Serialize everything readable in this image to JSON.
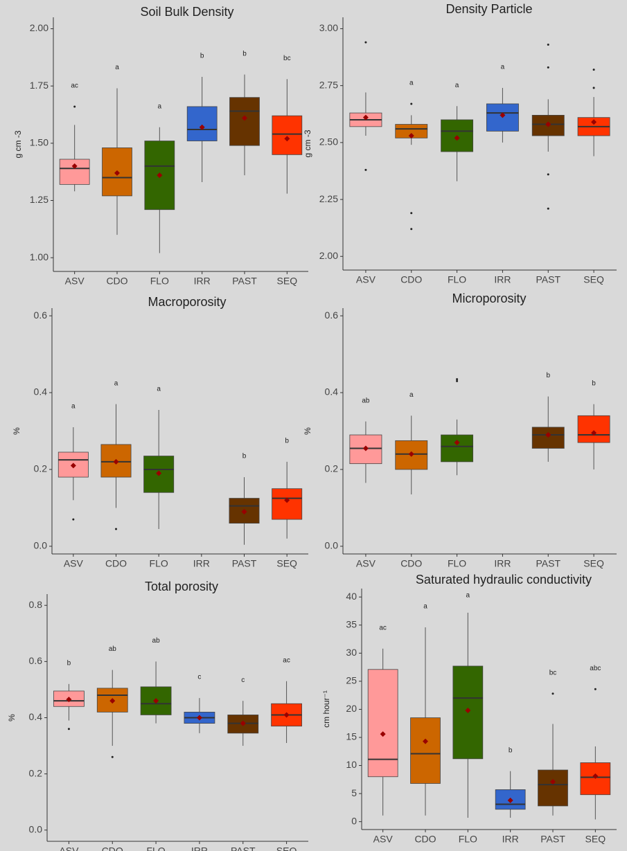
{
  "chart_data": [
    {
      "type": "box",
      "title": "Soil Bulk Density",
      "ylabel": "g cm -3",
      "categories": [
        "ASV",
        "CDO",
        "FLO",
        "IRR",
        "PAST",
        "SEQ"
      ],
      "colors": [
        "#ff9999",
        "#cc6600",
        "#336600",
        "#3366cc",
        "#663300",
        "#ff3300"
      ],
      "ylim": [
        0.94,
        2.05
      ],
      "yticks": [
        {
          "value": 1,
          "label": "1.00"
        },
        1.25,
        {
          "value": 1.5,
          "label": "1.50"
        },
        1.75,
        {
          "value": 2,
          "label": "2.00"
        }
      ],
      "boxes": [
        {
          "low": 1.29,
          "q1": 1.32,
          "median": 1.39,
          "q3": 1.43,
          "high": 1.58,
          "mean": 1.4,
          "outliers": [
            1.66
          ]
        },
        {
          "low": 1.1,
          "q1": 1.27,
          "median": 1.35,
          "q3": 1.48,
          "high": 1.74,
          "mean": 1.37,
          "outliers": []
        },
        {
          "low": 1.02,
          "q1": 1.21,
          "median": 1.4,
          "q3": 1.51,
          "high": 1.57,
          "mean": 1.36,
          "outliers": []
        },
        {
          "low": 1.33,
          "q1": 1.51,
          "median": 1.56,
          "q3": 1.66,
          "high": 1.79,
          "mean": 1.57,
          "outliers": []
        },
        {
          "low": 1.36,
          "q1": 1.49,
          "median": 1.64,
          "q3": 1.7,
          "high": 1.8,
          "mean": 1.61,
          "outliers": []
        },
        {
          "low": 1.28,
          "q1": 1.45,
          "median": 1.54,
          "q3": 1.62,
          "high": 1.78,
          "mean": 1.52,
          "outliers": []
        }
      ],
      "letters": [
        "ac",
        "a",
        "a",
        "b",
        "b",
        "bc"
      ]
    },
    {
      "type": "box",
      "title": "Density Particle",
      "ylabel": "g cm -3",
      "categories": [
        "ASV",
        "CDO",
        "FLO",
        "IRR",
        "PAST",
        "SEQ"
      ],
      "colors": [
        "#ff9999",
        "#cc6600",
        "#336600",
        "#3366cc",
        "#663300",
        "#ff3300"
      ],
      "ylim": [
        1.94,
        3.05
      ],
      "yticks": [
        {
          "value": 2,
          "label": "2.00"
        },
        2.25,
        {
          "value": 2.5,
          "label": "2.50"
        },
        2.75,
        {
          "value": 3,
          "label": "3.00"
        }
      ],
      "boxes": [
        {
          "low": 2.53,
          "q1": 2.57,
          "median": 2.6,
          "q3": 2.63,
          "high": 2.72,
          "mean": 2.61,
          "outliers": [
            2.94,
            2.38
          ]
        },
        {
          "low": 2.49,
          "q1": 2.52,
          "median": 2.56,
          "q3": 2.58,
          "high": 2.62,
          "mean": 2.53,
          "outliers": [
            2.67,
            2.19,
            2.12
          ]
        },
        {
          "low": 2.33,
          "q1": 2.46,
          "median": 2.55,
          "q3": 2.6,
          "high": 2.66,
          "mean": 2.52,
          "outliers": []
        },
        {
          "low": 2.5,
          "q1": 2.55,
          "median": 2.63,
          "q3": 2.67,
          "high": 2.74,
          "mean": 2.62,
          "outliers": []
        },
        {
          "low": 2.46,
          "q1": 2.53,
          "median": 2.58,
          "q3": 2.62,
          "high": 2.69,
          "mean": 2.58,
          "outliers": [
            2.93,
            2.83,
            2.36,
            2.21
          ]
        },
        {
          "low": 2.44,
          "q1": 2.53,
          "median": 2.57,
          "q3": 2.61,
          "high": 2.7,
          "mean": 2.59,
          "outliers": [
            2.82,
            2.74
          ]
        }
      ],
      "letters": [
        null,
        "a",
        "a",
        "a",
        null,
        null
      ]
    },
    {
      "type": "box",
      "title": "Macroporosity",
      "ylabel": "%",
      "categories": [
        "ASV",
        "CDO",
        "FLO",
        "IRR",
        "PAST",
        "SEQ"
      ],
      "colors": [
        "#ff9999",
        "#cc6600",
        "#336600",
        "#3366cc",
        "#663300",
        "#ff3300"
      ],
      "ylim": [
        -0.02,
        0.62
      ],
      "yticks": [
        {
          "value": 0,
          "label": "0.0"
        },
        0.2,
        0.4,
        0.6
      ],
      "boxes": [
        {
          "low": 0.12,
          "q1": 0.18,
          "median": 0.225,
          "q3": 0.245,
          "high": 0.31,
          "mean": 0.21,
          "outliers": [
            0.07
          ]
        },
        {
          "low": 0.1,
          "q1": 0.18,
          "median": 0.22,
          "q3": 0.265,
          "high": 0.37,
          "mean": 0.22,
          "outliers": [
            0.045
          ]
        },
        {
          "low": 0.045,
          "q1": 0.14,
          "median": 0.2,
          "q3": 0.235,
          "high": 0.355,
          "mean": 0.19,
          "outliers": []
        },
        null,
        {
          "low": 0.004,
          "q1": 0.06,
          "median": 0.105,
          "q3": 0.125,
          "high": 0.18,
          "mean": 0.09,
          "outliers": []
        },
        {
          "low": 0.02,
          "q1": 0.07,
          "median": 0.125,
          "q3": 0.15,
          "high": 0.22,
          "mean": 0.12,
          "outliers": []
        }
      ],
      "letters": [
        "a",
        "a",
        "a",
        null,
        "b",
        "b"
      ]
    },
    {
      "type": "box",
      "title": "Microporosity",
      "ylabel": "%",
      "categories": [
        "ASV",
        "CDO",
        "FLO",
        "IRR",
        "PAST",
        "SEQ"
      ],
      "colors": [
        "#ff9999",
        "#cc6600",
        "#336600",
        "#3366cc",
        "#663300",
        "#ff3300"
      ],
      "ylim": [
        -0.02,
        0.62
      ],
      "yticks": [
        {
          "value": 0,
          "label": "0.0"
        },
        0.2,
        0.4,
        0.6
      ],
      "boxes": [
        {
          "low": 0.165,
          "q1": 0.215,
          "median": 0.255,
          "q3": 0.29,
          "high": 0.325,
          "mean": 0.255,
          "outliers": []
        },
        {
          "low": 0.135,
          "q1": 0.2,
          "median": 0.24,
          "q3": 0.275,
          "high": 0.34,
          "mean": 0.24,
          "outliers": []
        },
        {
          "low": 0.185,
          "q1": 0.22,
          "median": 0.26,
          "q3": 0.29,
          "high": 0.33,
          "mean": 0.27,
          "outliers": [
            0.435,
            0.43
          ]
        },
        null,
        {
          "low": 0.22,
          "q1": 0.255,
          "median": 0.29,
          "q3": 0.31,
          "high": 0.39,
          "mean": 0.29,
          "outliers": []
        },
        {
          "low": 0.2,
          "q1": 0.27,
          "median": 0.29,
          "q3": 0.34,
          "high": 0.37,
          "mean": 0.295,
          "outliers": []
        }
      ],
      "letters": [
        "ab",
        "a",
        null,
        null,
        "b",
        "b"
      ]
    },
    {
      "type": "box",
      "title": "Total porosity",
      "ylabel": "%",
      "categories": [
        "ASV",
        "CDO",
        "FLO",
        "IRR",
        "PAST",
        "SEQ"
      ],
      "colors": [
        "#ff9999",
        "#cc6600",
        "#336600",
        "#3366cc",
        "#663300",
        "#ff3300"
      ],
      "ylim": [
        -0.04,
        0.84
      ],
      "yticks": [
        {
          "value": 0,
          "label": "0.0"
        },
        0.2,
        0.4,
        0.6,
        0.8
      ],
      "boxes": [
        {
          "low": 0.39,
          "q1": 0.44,
          "median": 0.46,
          "q3": 0.495,
          "high": 0.52,
          "mean": 0.465,
          "outliers": [
            0.36
          ]
        },
        {
          "low": 0.3,
          "q1": 0.42,
          "median": 0.48,
          "q3": 0.505,
          "high": 0.57,
          "mean": 0.46,
          "outliers": [
            0.26
          ]
        },
        {
          "low": 0.38,
          "q1": 0.41,
          "median": 0.45,
          "q3": 0.51,
          "high": 0.6,
          "mean": 0.46,
          "outliers": []
        },
        {
          "low": 0.345,
          "q1": 0.38,
          "median": 0.4,
          "q3": 0.42,
          "high": 0.47,
          "mean": 0.4,
          "outliers": []
        },
        {
          "low": 0.3,
          "q1": 0.345,
          "median": 0.38,
          "q3": 0.41,
          "high": 0.46,
          "mean": 0.38,
          "outliers": []
        },
        {
          "low": 0.31,
          "q1": 0.37,
          "median": 0.41,
          "q3": 0.45,
          "high": 0.53,
          "mean": 0.41,
          "outliers": []
        }
      ],
      "letters": [
        "b",
        "ab",
        "ab",
        "c",
        "c",
        "ac"
      ]
    },
    {
      "type": "box",
      "title": "Saturated hydraulic conductivity",
      "ylabel": "cm hour⁻¹",
      "categories": [
        "ASV",
        "CDO",
        "FLO",
        "IRR",
        "PAST",
        "SEQ"
      ],
      "colors": [
        "#ff9999",
        "#cc6600",
        "#336600",
        "#3366cc",
        "#663300",
        "#ff3300"
      ],
      "ylim": [
        -1.4,
        41.5
      ],
      "yticks": [
        0,
        5,
        10,
        15,
        20,
        25,
        30,
        35,
        40
      ],
      "boxes": [
        {
          "low": 1.1,
          "q1": 8.0,
          "median": 11.1,
          "q3": 27.1,
          "high": 30.8,
          "mean": 15.6,
          "outliers": []
        },
        {
          "low": 1.1,
          "q1": 6.8,
          "median": 12.1,
          "q3": 18.5,
          "high": 34.6,
          "mean": 14.3,
          "outliers": []
        },
        {
          "low": 0.7,
          "q1": 11.2,
          "median": 22.0,
          "q3": 27.7,
          "high": 37.2,
          "mean": 19.8,
          "outliers": []
        },
        {
          "low": 0.7,
          "q1": 2.2,
          "median": 3.1,
          "q3": 5.7,
          "high": 9.0,
          "mean": 3.8,
          "outliers": []
        },
        {
          "low": 1.1,
          "q1": 2.8,
          "median": 6.6,
          "q3": 9.2,
          "high": 17.4,
          "mean": 7.1,
          "outliers": [
            22.8
          ]
        },
        {
          "low": 0.4,
          "q1": 4.8,
          "median": 7.9,
          "q3": 10.5,
          "high": 13.4,
          "mean": 8.1,
          "outliers": [
            23.6
          ]
        }
      ],
      "letters": [
        "ac",
        "a",
        "a",
        "b",
        "bc",
        "abc"
      ]
    }
  ]
}
